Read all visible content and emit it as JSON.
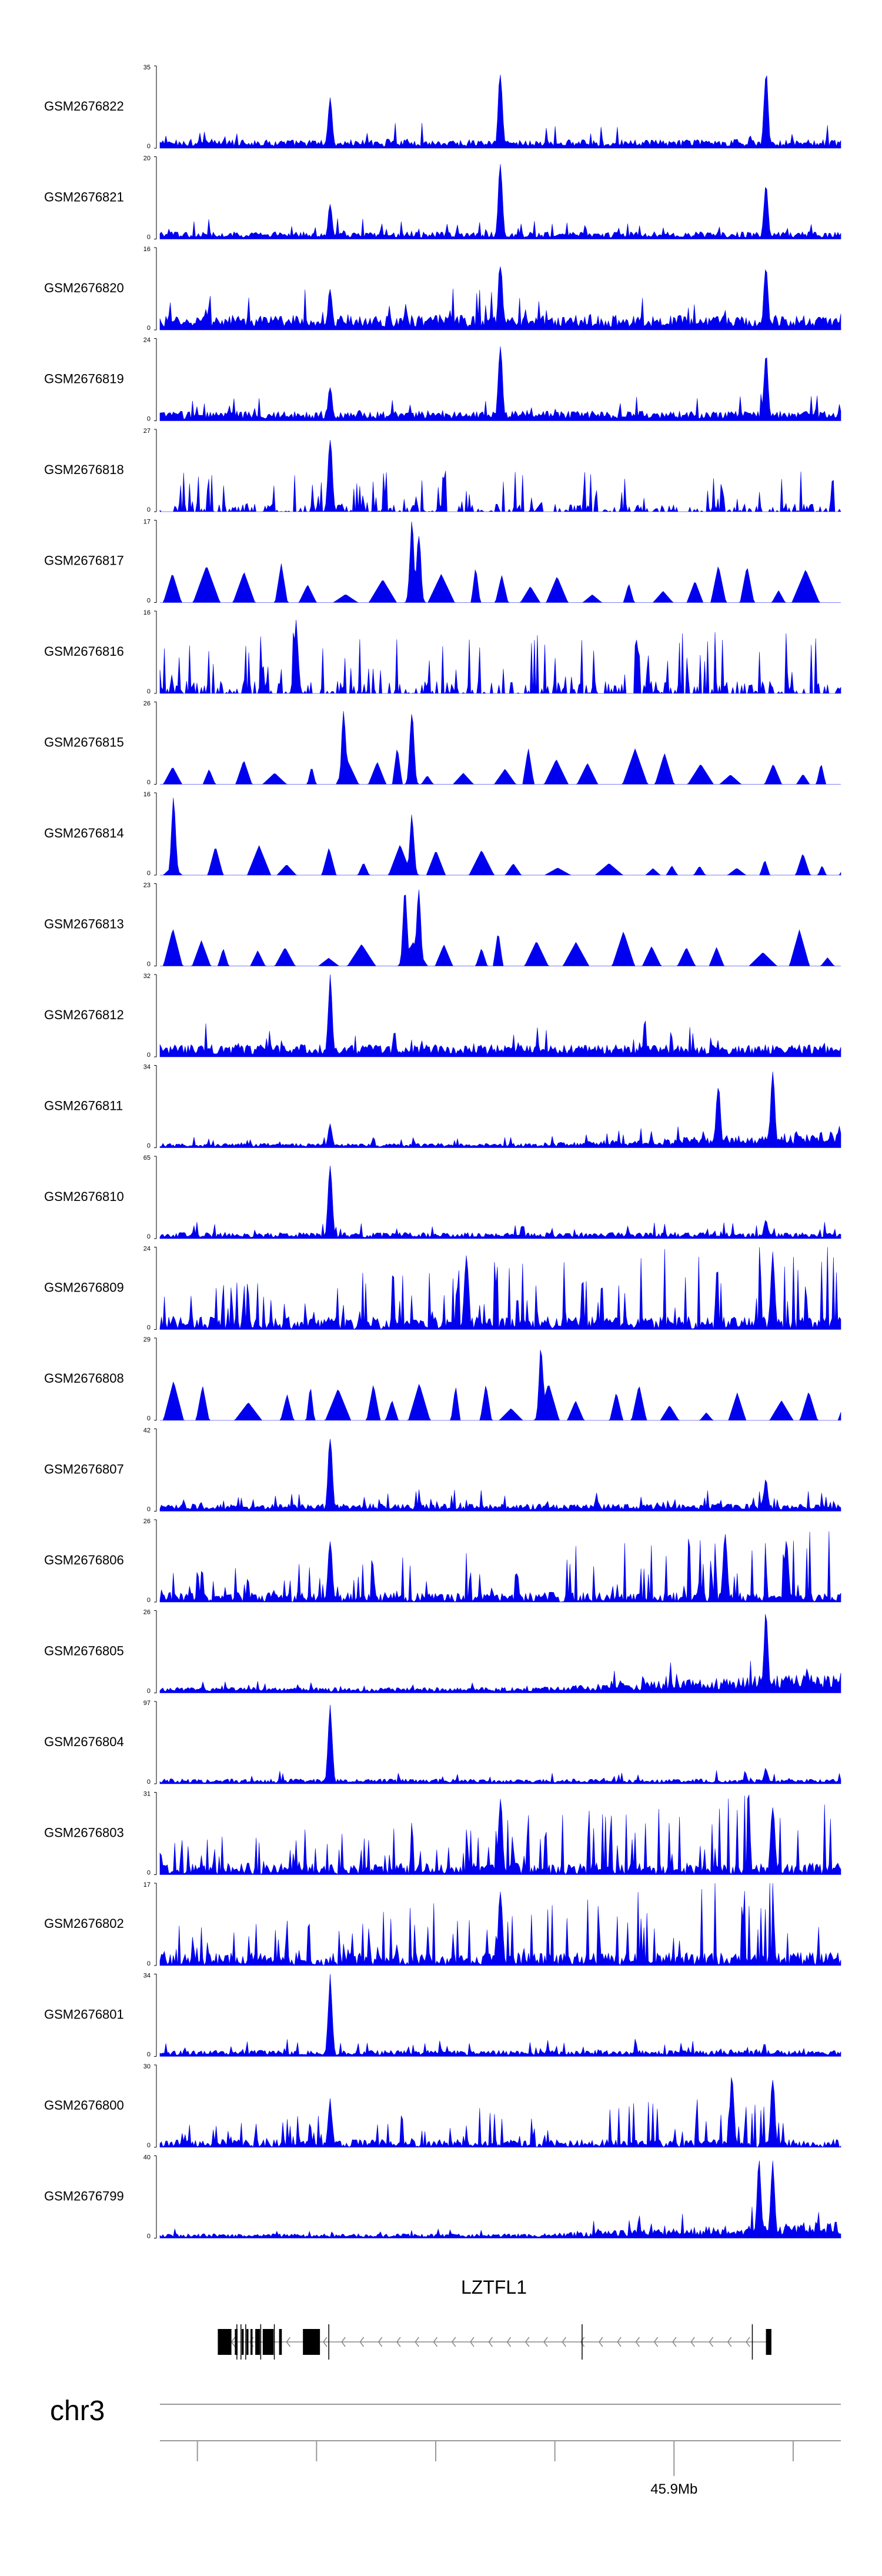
{
  "chart_data": {
    "type": "area",
    "series_color": "#0000ee",
    "tracks": [
      {
        "name": "GSM2676822",
        "ymax": 35,
        "ymin": 0,
        "peaks": [
          0.25,
          0.5,
          0.89
        ],
        "peakh": [
          0.65,
          1.0,
          0.98
        ],
        "base": 0.07,
        "mode": "dense"
      },
      {
        "name": "GSM2676821",
        "ymax": 20,
        "ymin": 0,
        "peaks": [
          0.25,
          0.5,
          0.89
        ],
        "peakh": [
          0.45,
          1.0,
          0.75
        ],
        "base": 0.06,
        "mode": "dense"
      },
      {
        "name": "GSM2676820",
        "ymax": 16,
        "ymin": 0,
        "peaks": [
          0.25,
          0.5,
          0.89
        ],
        "peakh": [
          0.55,
          0.9,
          0.85
        ],
        "base": 0.12,
        "mode": "dense"
      },
      {
        "name": "GSM2676819",
        "ymax": 24,
        "ymin": 0,
        "peaks": [
          0.25,
          0.5,
          0.89
        ],
        "peakh": [
          0.45,
          1.0,
          0.9
        ],
        "base": 0.08,
        "mode": "dense"
      },
      {
        "name": "GSM2676818",
        "ymax": 27,
        "ymin": 0,
        "peaks": [
          0.25
        ],
        "peakh": [
          1.0
        ],
        "base": 0.1,
        "mode": "sparse"
      },
      {
        "name": "GSM2676817",
        "ymax": 17,
        "ymin": 0,
        "peaks": [
          0.37,
          0.38
        ],
        "peakh": [
          1.0,
          0.9
        ],
        "base": 0.15,
        "mode": "triangles"
      },
      {
        "name": "GSM2676816",
        "ymax": 16,
        "ymin": 0,
        "peaks": [
          0.2
        ],
        "peakh": [
          0.95
        ],
        "base": 0.15,
        "mode": "sparse"
      },
      {
        "name": "GSM2676815",
        "ymax": 26,
        "ymin": 0,
        "peaks": [
          0.27,
          0.37
        ],
        "peakh": [
          0.95,
          1.0
        ],
        "base": 0.15,
        "mode": "triangles"
      },
      {
        "name": "GSM2676814",
        "ymax": 16,
        "ymin": 0,
        "peaks": [
          0.02,
          0.37
        ],
        "peakh": [
          0.95,
          0.75
        ],
        "base": 0.12,
        "mode": "triangles"
      },
      {
        "name": "GSM2676813",
        "ymax": 23,
        "ymin": 0,
        "peaks": [
          0.36,
          0.38
        ],
        "peakh": [
          1.0,
          0.95
        ],
        "base": 0.15,
        "mode": "triangles"
      },
      {
        "name": "GSM2676812",
        "ymax": 32,
        "ymin": 0,
        "peaks": [
          0.25
        ],
        "peakh": [
          1.0
        ],
        "base": 0.1,
        "mode": "dense"
      },
      {
        "name": "GSM2676811",
        "ymax": 34,
        "ymin": 0,
        "peaks": [
          0.25,
          0.82,
          0.9
        ],
        "peakh": [
          0.3,
          0.85,
          1.0
        ],
        "base": 0.12,
        "mode": "rising"
      },
      {
        "name": "GSM2676810",
        "ymax": 65,
        "ymin": 0,
        "peaks": [
          0.25,
          0.89
        ],
        "peakh": [
          1.0,
          0.25
        ],
        "base": 0.05,
        "mode": "dense"
      },
      {
        "name": "GSM2676809",
        "ymax": 24,
        "ymin": 0,
        "peaks": [
          0.45,
          0.9
        ],
        "peakh": [
          1.0,
          0.95
        ],
        "base": 0.2,
        "mode": "spiky"
      },
      {
        "name": "GSM2676808",
        "ymax": 29,
        "ymin": 0,
        "peaks": [
          0.56
        ],
        "peakh": [
          0.95
        ],
        "base": 0.15,
        "mode": "triangles"
      },
      {
        "name": "GSM2676807",
        "ymax": 42,
        "ymin": 0,
        "peaks": [
          0.25,
          0.89
        ],
        "peakh": [
          1.0,
          0.4
        ],
        "base": 0.06,
        "mode": "dense"
      },
      {
        "name": "GSM2676806",
        "ymax": 26,
        "ymin": 0,
        "peaks": [
          0.25,
          0.83,
          0.92
        ],
        "peakh": [
          0.8,
          0.95,
          0.85
        ],
        "base": 0.15,
        "mode": "spiky"
      },
      {
        "name": "GSM2676805",
        "ymax": 26,
        "ymin": 0,
        "peaks": [
          0.89
        ],
        "peakh": [
          1.0
        ],
        "base": 0.15,
        "mode": "rising"
      },
      {
        "name": "GSM2676804",
        "ymax": 97,
        "ymin": 0,
        "peaks": [
          0.25,
          0.89
        ],
        "peakh": [
          1.0,
          0.2
        ],
        "base": 0.04,
        "mode": "dense"
      },
      {
        "name": "GSM2676803",
        "ymax": 31,
        "ymin": 0,
        "peaks": [
          0.5,
          0.9
        ],
        "peakh": [
          1.0,
          0.95
        ],
        "base": 0.18,
        "mode": "spiky"
      },
      {
        "name": "GSM2676802",
        "ymax": 17,
        "ymin": 0,
        "peaks": [
          0.5
        ],
        "peakh": [
          1.0
        ],
        "base": 0.2,
        "mode": "spiky"
      },
      {
        "name": "GSM2676801",
        "ymax": 34,
        "ymin": 0,
        "peaks": [
          0.25
        ],
        "peakh": [
          1.0
        ],
        "base": 0.05,
        "mode": "dense"
      },
      {
        "name": "GSM2676800",
        "ymax": 30,
        "ymin": 0,
        "peaks": [
          0.25,
          0.84,
          0.9
        ],
        "peakh": [
          0.6,
          0.9,
          0.9
        ],
        "base": 0.12,
        "mode": "spiky"
      },
      {
        "name": "GSM2676799",
        "ymax": 40,
        "ymin": 0,
        "peaks": [
          0.88,
          0.9
        ],
        "peakh": [
          1.0,
          0.95
        ],
        "base": 0.12,
        "mode": "rising"
      }
    ],
    "gene": {
      "name": "LZTFL1",
      "strand": "-",
      "exons": [
        [
          0.085,
          0.105
        ],
        [
          0.11,
          0.114
        ],
        [
          0.12,
          0.123
        ],
        [
          0.127,
          0.13
        ],
        [
          0.133,
          0.136
        ],
        [
          0.14,
          0.147
        ],
        [
          0.151,
          0.167
        ],
        [
          0.175,
          0.179
        ],
        [
          0.21,
          0.235
        ],
        [
          0.89,
          0.898
        ]
      ],
      "introns_marks": [
        0.113,
        0.119,
        0.126,
        0.148,
        0.168,
        0.248,
        0.62,
        0.87
      ]
    },
    "axis": {
      "chromosome": "chr3",
      "tick_label": "45.9Mb",
      "tick_pos": 0.755,
      "minor_ticks": [
        0.055,
        0.23,
        0.405,
        0.58,
        0.93
      ]
    }
  }
}
